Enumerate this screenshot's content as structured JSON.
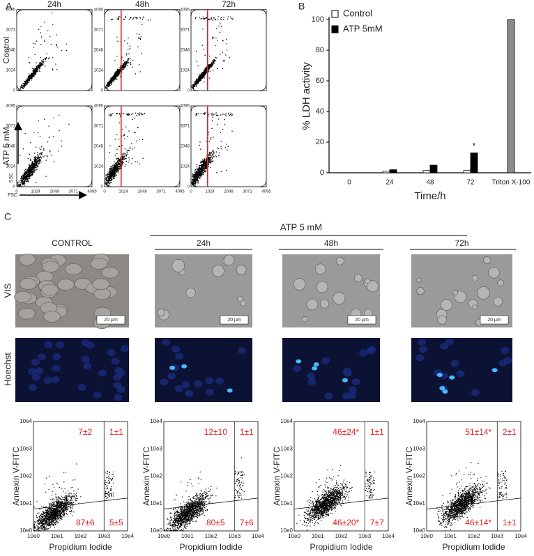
{
  "panel_labels": [
    "A",
    "B",
    "C"
  ],
  "panel_a": {
    "columns": [
      "24h",
      "48h",
      "72h"
    ],
    "rows": [
      "Control",
      "ATP 5 mM"
    ],
    "ticks": [
      "0",
      "1024",
      "2048",
      "3071",
      "4095"
    ],
    "ylabel": "SSC",
    "xlabel": "FSC"
  },
  "chart_data": {
    "type": "bar",
    "ylabel": "% LDH activity",
    "xlabel": "Time/h",
    "categories": [
      "0",
      "24",
      "48",
      "72",
      "Triton X-100"
    ],
    "series": [
      {
        "name": "Control",
        "color": "#ffffff",
        "values": [
          0,
          1,
          1.5,
          1.5,
          null
        ]
      },
      {
        "name": "ATP 5mM",
        "color": "#000000",
        "values": [
          0,
          2,
          5,
          13,
          null
        ]
      },
      {
        "color": "#8c8c8c",
        "values": [
          null,
          null,
          null,
          null,
          100
        ]
      }
    ],
    "ylim": [
      0,
      100
    ],
    "yticks": [
      0,
      20,
      40,
      60,
      80,
      100
    ],
    "annotation": "*"
  },
  "panel_c": {
    "group_label": "ATP 5 mM",
    "columns": [
      "CONTROL",
      "24h",
      "48h",
      "72h"
    ],
    "row_labels": [
      "VIS",
      "Hoechst"
    ],
    "scale_bar": "20 µm",
    "xlabel": "Propidium Iodide",
    "ylabel": "Annexin V-FITC",
    "ticks": [
      "10e0",
      "10e1",
      "10e2",
      "10e3",
      "10e4"
    ],
    "quadrants": [
      [
        "7±2",
        "1±1",
        "87±6",
        "5±5"
      ],
      [
        "12±10",
        "1±1",
        "80±5",
        "7±6"
      ],
      [
        "46±24*",
        "1±1",
        "46±20*",
        "7±7"
      ],
      [
        "51±14*",
        "2±1",
        "46±14*",
        "1±1"
      ]
    ]
  }
}
